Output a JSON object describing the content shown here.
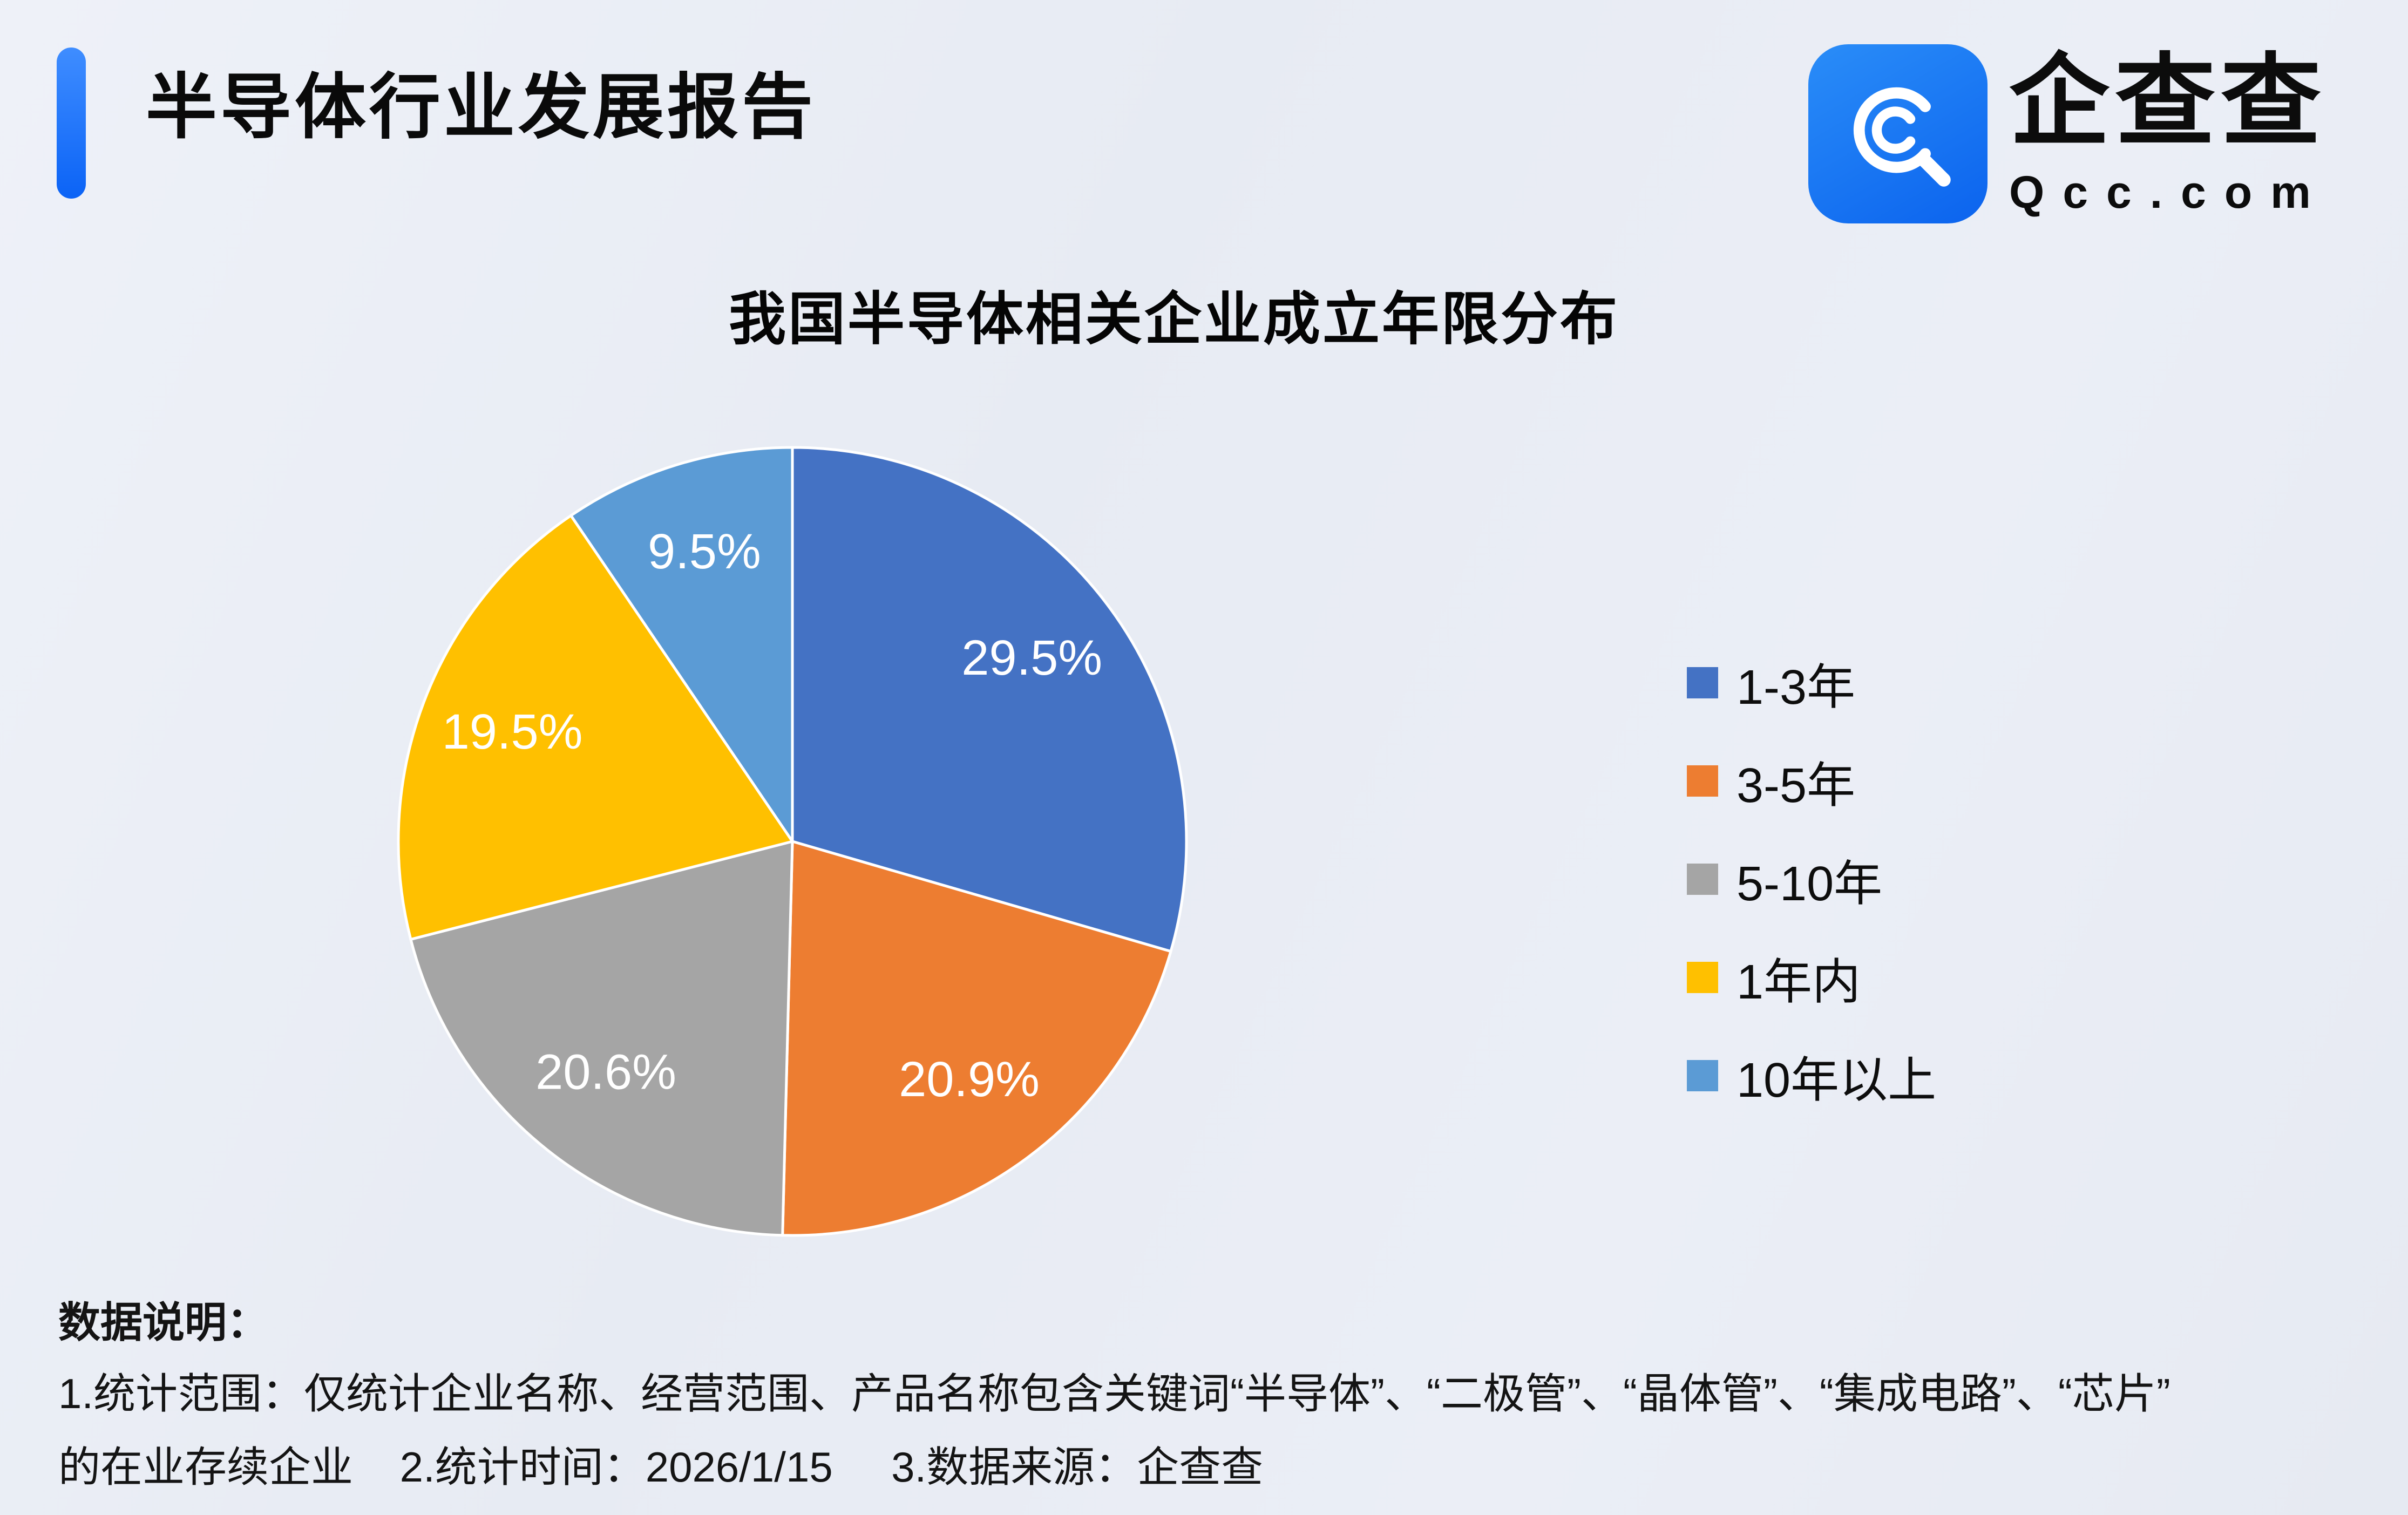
{
  "page": {
    "report_title": "半导体行业发展报告",
    "logo": {
      "brand_name": "企查查",
      "brand_domain": "Qcc.com"
    }
  },
  "chart_data": {
    "type": "pie",
    "title": "我国半导体相关企业成立年限分布",
    "legend_position": "right",
    "start_angle_deg": 0,
    "direction": "clockwise",
    "slices": [
      {
        "label": "1-3年",
        "value": 29.5,
        "display": "29.5%",
        "color": "#4472C4"
      },
      {
        "label": "3-5年",
        "value": 20.9,
        "display": "20.9%",
        "color": "#ED7D31"
      },
      {
        "label": "5-10年",
        "value": 20.6,
        "display": "20.6%",
        "color": "#A5A5A5"
      },
      {
        "label": "1年内",
        "value": 19.5,
        "display": "19.5%",
        "color": "#FFC000"
      },
      {
        "label": "10年以上",
        "value": 9.5,
        "display": "9.5%",
        "color": "#5B9BD5"
      }
    ]
  },
  "footnotes": {
    "heading": "数据说明：",
    "line1": "1.统计范围：仅统计企业名称、经营范围、产品名称包含关键词“半导体”、“二极管”、“晶体管”、“集成电路”、“芯片”",
    "line2": "的在业存续企业    2.统计时间：2026/1/15     3.数据来源：企查查"
  },
  "colors": {
    "accent_bar": "#0b63f6",
    "background": "#e9edf4",
    "slice_label_text": "#ffffff"
  }
}
